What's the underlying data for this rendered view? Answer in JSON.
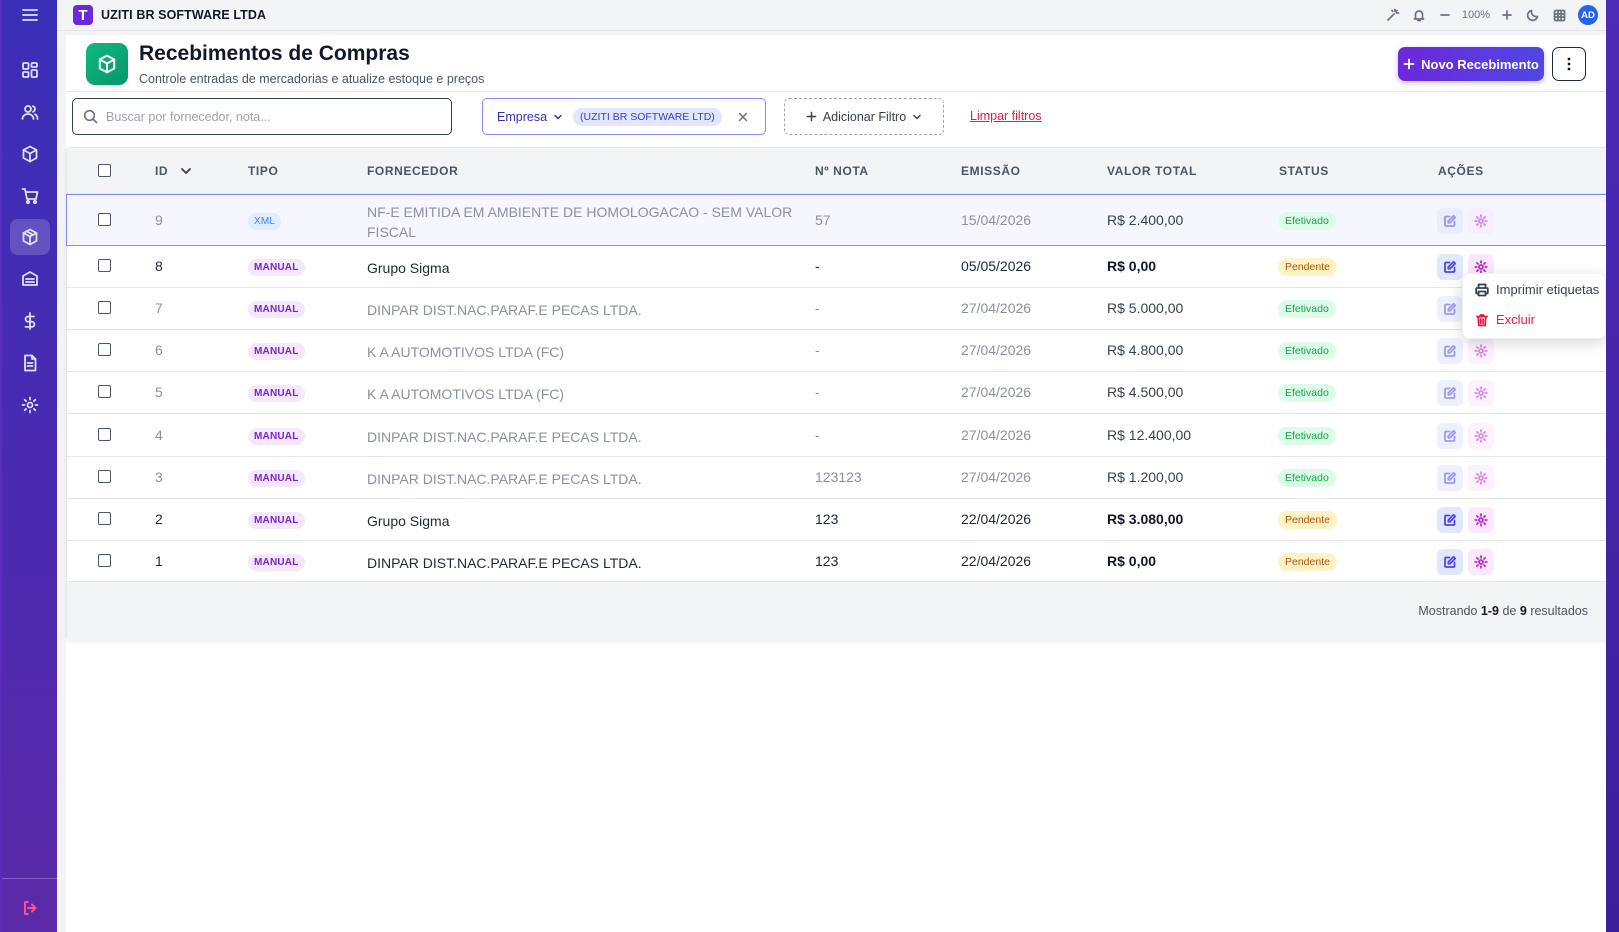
{
  "app": {
    "company": "UZITI BR SOFTWARE LTDA",
    "zoom": "100%",
    "avatar_initials": "AD"
  },
  "sidebar": {
    "items": [
      {
        "icon": "dashboard-icon",
        "active": false
      },
      {
        "icon": "users-icon",
        "active": false
      },
      {
        "icon": "box-icon",
        "active": false
      },
      {
        "icon": "cart-icon",
        "active": false
      },
      {
        "icon": "package-receive-icon",
        "active": true
      },
      {
        "icon": "inbox-icon",
        "active": false
      },
      {
        "icon": "dollar-icon",
        "active": false
      },
      {
        "icon": "document-icon",
        "active": false
      },
      {
        "icon": "settings-icon",
        "active": false
      }
    ]
  },
  "page": {
    "title": "Recebimentos de Compras",
    "subtitle": "Controle entradas de mercadorias e atualize estoque e preços",
    "new_button_label": "Novo Recebimento"
  },
  "filters": {
    "search_placeholder": "Buscar por fornecedor, nota...",
    "search_value": "",
    "company_label": "Empresa",
    "company_value": "(UZITI BR SOFTWARE LTD)",
    "add_filter_label": "Adicionar Filtro",
    "clear_label": "Limpar filtros"
  },
  "table": {
    "columns": [
      "ID",
      "TIPO",
      "FORNECEDOR",
      "Nº NOTA",
      "EMISSÃO",
      "VALOR TOTAL",
      "STATUS",
      "AÇÕES"
    ],
    "rows": [
      {
        "id": "9",
        "tipo": "XML",
        "fornecedor": "NF-E EMITIDA EM AMBIENTE DE HOMOLOGACAO - SEM VALOR FISCAL",
        "nota": "57",
        "emissao": "15/04/2026",
        "valor": "R$ 2.400,00",
        "status": "Efetivado"
      },
      {
        "id": "8",
        "tipo": "MANUAL",
        "fornecedor": "Grupo Sigma",
        "nota": "-",
        "emissao": "05/05/2026",
        "valor": "R$ 0,00",
        "status": "Pendente"
      },
      {
        "id": "7",
        "tipo": "MANUAL",
        "fornecedor": "DINPAR DIST.NAC.PARAF.E PECAS LTDA.",
        "nota": "-",
        "emissao": "27/04/2026",
        "valor": "R$ 5.000,00",
        "status": "Efetivado"
      },
      {
        "id": "6",
        "tipo": "MANUAL",
        "fornecedor": "K A AUTOMOTIVOS LTDA (FC)",
        "nota": "-",
        "emissao": "27/04/2026",
        "valor": "R$ 4.800,00",
        "status": "Efetivado"
      },
      {
        "id": "5",
        "tipo": "MANUAL",
        "fornecedor": "K A AUTOMOTIVOS LTDA (FC)",
        "nota": "-",
        "emissao": "27/04/2026",
        "valor": "R$ 4.500,00",
        "status": "Efetivado"
      },
      {
        "id": "4",
        "tipo": "MANUAL",
        "fornecedor": "DINPAR DIST.NAC.PARAF.E PECAS LTDA.",
        "nota": "-",
        "emissao": "27/04/2026",
        "valor": "R$ 12.400,00",
        "status": "Efetivado"
      },
      {
        "id": "3",
        "tipo": "MANUAL",
        "fornecedor": "DINPAR DIST.NAC.PARAF.E PECAS LTDA.",
        "nota": "123123",
        "emissao": "27/04/2026",
        "valor": "R$ 1.200,00",
        "status": "Efetivado"
      },
      {
        "id": "2",
        "tipo": "MANUAL",
        "fornecedor": "Grupo Sigma",
        "nota": "123",
        "emissao": "22/04/2026",
        "valor": "R$ 3.080,00",
        "status": "Pendente"
      },
      {
        "id": "1",
        "tipo": "MANUAL",
        "fornecedor": "DINPAR DIST.NAC.PARAF.E PECAS LTDA.",
        "nota": "123",
        "emissao": "22/04/2026",
        "valor": "R$ 0,00",
        "status": "Pendente"
      }
    ]
  },
  "pagination": {
    "prefix": "Mostrando",
    "range": "1-9",
    "middle": "de",
    "total": "9",
    "suffix": "resultados"
  },
  "context_menu": {
    "print_label": "Imprimir etiquetas",
    "delete_label": "Excluir"
  },
  "colors": {
    "primary": "#6d28d9",
    "sidebar": "#3a2fb8",
    "success": "#16a34a",
    "warning": "#b45309",
    "danger": "#e11d48"
  }
}
